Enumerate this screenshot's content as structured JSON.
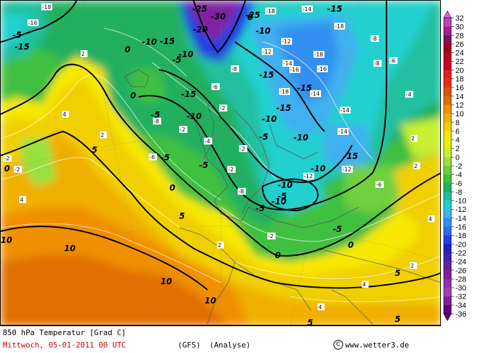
{
  "map": {
    "contour_labels": [
      {
        "text": "-25",
        "level": -25
      },
      {
        "text": "-30",
        "level": -30
      },
      {
        "text": "-20",
        "level": -20
      },
      {
        "text": "-15",
        "level": -15
      },
      {
        "text": "-10",
        "level": -10
      },
      {
        "text": "-5",
        "level": -5
      },
      {
        "text": "0",
        "level": 0
      },
      {
        "text": "5",
        "level": 5
      },
      {
        "text": "10",
        "level": 10
      }
    ],
    "isotherm_values": [
      "-18",
      "-16",
      "-14",
      "-12",
      "-8",
      "-6",
      "-4",
      "-2",
      "2",
      "4",
      "6",
      "8"
    ]
  },
  "legend": {
    "levels": [
      "32",
      "30",
      "28",
      "26",
      "24",
      "22",
      "20",
      "18",
      "16",
      "14",
      "12",
      "10",
      "8",
      "6",
      "4",
      "2",
      "0",
      "-2",
      "-4",
      "-6",
      "-8",
      "-10",
      "-12",
      "-14",
      "-16",
      "-18",
      "-20",
      "-22",
      "-24",
      "-26",
      "-28",
      "-30",
      "-32",
      "-34",
      "-36"
    ],
    "colors": [
      "#e060e0",
      "#c040c0",
      "#a02090",
      "#801060",
      "#a00020",
      "#c00020",
      "#d00020",
      "#e02020",
      "#e03010",
      "#e05010",
      "#e07000",
      "#f09000",
      "#f0b000",
      "#f0d000",
      "#f8e800",
      "#e8f000",
      "#c8f030",
      "#98e040",
      "#70d040",
      "#40c040",
      "#20b060",
      "#20c0a0",
      "#20d0d0",
      "#40b0f0",
      "#3090f0",
      "#2070f0",
      "#2040e0",
      "#2020c0",
      "#4020b0",
      "#6020a0",
      "#8020a0",
      "#9030b0",
      "#a040b0",
      "#8020a0",
      "#600080"
    ]
  },
  "footer": {
    "title": "850 hPa Temperatur [Grad C]",
    "datetime": "Mittwoch, 05-01-2011  00 UTC",
    "model": "(GFS)",
    "analysis": "(Analyse)",
    "copyright_symbol": "C",
    "website": "www.wetter3.de"
  }
}
